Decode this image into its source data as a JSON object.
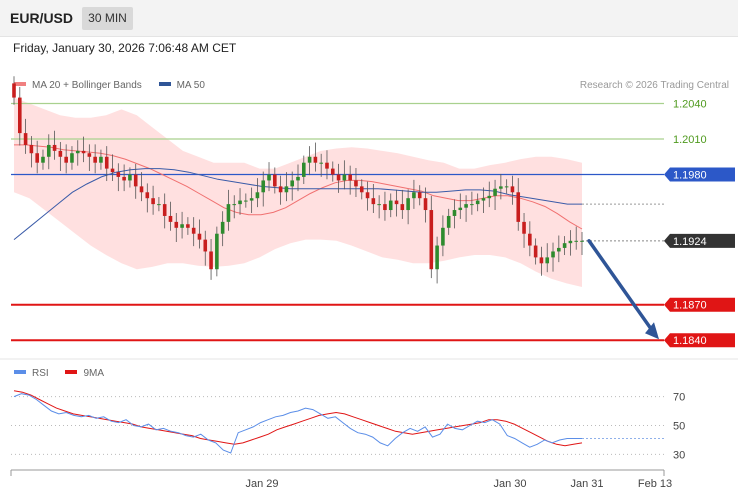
{
  "header": {
    "symbol": "EUR/USD",
    "timeframe": "30 MIN"
  },
  "datetime": "Friday, January 30, 2026 7:06:48 AM CET",
  "legend": {
    "ma20_bb": "MA 20 + Bollinger Bands",
    "ma50": "MA 50"
  },
  "credit": "Research © 2026 Trading Central",
  "rsi_legend": {
    "rsi": "RSI",
    "ma9": "9MA"
  },
  "colors": {
    "up": "#2e8b2e",
    "down": "#c81e1e",
    "band": "#ffd6d6",
    "ma20": "#f07070",
    "ma50": "#3a5ba8",
    "support": "#e01515",
    "resist_green": "#a9d18e",
    "blue_level": "#2c58c8",
    "arrow": "#2f5597",
    "rsi": "#5b8ee8",
    "rsi_ma": "#e01515"
  },
  "chart_data": {
    "type": "candlestick",
    "y_range": [
      1.1825,
      1.207
    ],
    "price_levels": [
      {
        "label": "1.2040",
        "value": 1.204,
        "style": "green-line"
      },
      {
        "label": "1.2010",
        "value": 1.201,
        "style": "green-line"
      },
      {
        "label": "1.1980",
        "value": 1.198,
        "style": "blue-badge"
      },
      {
        "label": "1.1924",
        "value": 1.1924,
        "style": "dark-badge"
      },
      {
        "label": "1.1870",
        "value": 1.187,
        "style": "red-badge"
      },
      {
        "label": "1.1840",
        "value": 1.184,
        "style": "red-badge"
      }
    ],
    "x_labels": [
      "Jan 29",
      "Jan 30",
      "Jan 31",
      "Feb 13"
    ],
    "close_series": [
      1.2045,
      1.2015,
      1.2005,
      1.1998,
      1.199,
      1.1995,
      1.2005,
      1.2,
      1.1995,
      1.199,
      1.1998,
      1.2,
      1.1998,
      1.1995,
      1.199,
      1.1995,
      1.1985,
      1.1982,
      1.1978,
      1.1975,
      1.198,
      1.197,
      1.1965,
      1.196,
      1.1955,
      1.1955,
      1.1945,
      1.194,
      1.1935,
      1.1938,
      1.1935,
      1.193,
      1.1925,
      1.1915,
      1.19,
      1.193,
      1.194,
      1.1955,
      1.1955,
      1.1958,
      1.1958,
      1.196,
      1.1965,
      1.1975,
      1.198,
      1.197,
      1.1965,
      1.197,
      1.1975,
      1.1978,
      1.199,
      1.1995,
      1.199,
      1.199,
      1.1985,
      1.198,
      1.1975,
      1.198,
      1.1975,
      1.197,
      1.1965,
      1.196,
      1.1955,
      1.1955,
      1.195,
      1.1958,
      1.1955,
      1.195,
      1.196,
      1.1965,
      1.196,
      1.195,
      1.19,
      1.192,
      1.1935,
      1.1945,
      1.195,
      1.1952,
      1.1955,
      1.1955,
      1.1958,
      1.196,
      1.1962,
      1.1968,
      1.197,
      1.197,
      1.1965,
      1.194,
      1.193,
      1.192,
      1.191,
      1.1905,
      1.191,
      1.1915,
      1.1918,
      1.1922,
      1.1924,
      1.1924,
      1.1924
    ],
    "ma20_series": [
      1.2005,
      1.2005,
      1.2004,
      1.2003,
      1.2001,
      1.2,
      1.1999,
      1.1998,
      1.1996,
      1.1993,
      1.1989,
      1.1985,
      1.198,
      1.1975,
      1.197,
      1.1964,
      1.1958,
      1.1952,
      1.1948,
      1.1946,
      1.1946,
      1.1948,
      1.1952,
      1.1958,
      1.1964,
      1.1969,
      1.1973,
      1.1975,
      1.1975,
      1.1974,
      1.1972,
      1.197,
      1.1968,
      1.1966,
      1.1962,
      1.196,
      1.1958,
      1.1958,
      1.196,
      1.1962,
      1.1962,
      1.196,
      1.1957,
      1.1953,
      1.1947,
      1.194,
      1.1934
    ],
    "ma50_series": [
      1.1925,
      1.1935,
      1.1945,
      1.1955,
      1.1965,
      1.1972,
      1.1978,
      1.1982,
      1.1984,
      1.1985,
      1.1985,
      1.1984,
      1.1982,
      1.1979,
      1.1976,
      1.1974,
      1.1972,
      1.197,
      1.1969,
      1.1968,
      1.1968,
      1.1968,
      1.1968,
      1.1968,
      1.1968,
      1.1968,
      1.1967,
      1.1966,
      1.1965,
      1.1965,
      1.1966,
      1.1967,
      1.1967,
      1.1966,
      1.1963,
      1.1961,
      1.1959,
      1.1957,
      1.1955,
      1.1955
    ],
    "bb_upper": [
      1.2045,
      1.204,
      1.2035,
      1.203,
      1.2028,
      1.2028,
      1.203,
      1.2035,
      1.203,
      1.202,
      1.201,
      1.2,
      1.1995,
      1.199,
      1.199,
      1.199,
      1.1985,
      1.1985,
      1.199,
      1.1995,
      1.2,
      1.2002,
      1.2003,
      1.2002,
      1.2,
      1.1998,
      1.1995,
      1.1992,
      1.199,
      1.1985,
      1.1985,
      1.1988,
      1.199,
      1.1993,
      1.1995,
      1.1995,
      1.1993,
      1.199
    ],
    "bb_lower": [
      1.1965,
      1.196,
      1.195,
      1.194,
      1.193,
      1.192,
      1.1912,
      1.1905,
      1.19,
      1.1902,
      1.1905,
      1.1905,
      1.1903,
      1.1902,
      1.1903,
      1.1905,
      1.191,
      1.1917,
      1.1922,
      1.1925,
      1.1925,
      1.1924,
      1.192,
      1.1915,
      1.191,
      1.1908,
      1.1905,
      1.1905,
      1.1907,
      1.191,
      1.1912,
      1.1912,
      1.191,
      1.1905,
      1.1898,
      1.1892,
      1.1888,
      1.1885
    ],
    "projection": {
      "from": 1.1924,
      "to": 1.184
    },
    "rsi": {
      "ticks": [
        "70",
        "50",
        "30"
      ],
      "tick_values": [
        70,
        50,
        30
      ],
      "y_range": [
        22,
        78
      ],
      "rsi_series": [
        70,
        72,
        71,
        68,
        64,
        60,
        58,
        59,
        57,
        56,
        57,
        55,
        56,
        53,
        52,
        54,
        50,
        49,
        51,
        47,
        48,
        46,
        45,
        43,
        42,
        44,
        40,
        38,
        33,
        31,
        45,
        47,
        49,
        52,
        54,
        56,
        57,
        59,
        60,
        62,
        61,
        58,
        55,
        56,
        52,
        48,
        45,
        44,
        42,
        38,
        36,
        41,
        45,
        48,
        46,
        49,
        42,
        44,
        51,
        48,
        47,
        50,
        53,
        52,
        54,
        51,
        43,
        41,
        38,
        35,
        37,
        40,
        38,
        40,
        41,
        41,
        41
      ],
      "ma_series": [
        74,
        73,
        71,
        68,
        65,
        62,
        60,
        58,
        57,
        56,
        55,
        54,
        53,
        52,
        51,
        49,
        48,
        47,
        46,
        45,
        44,
        43,
        41,
        40,
        39,
        38,
        37,
        38,
        40,
        42,
        44,
        47,
        49,
        51,
        53,
        55,
        57,
        58,
        59,
        58,
        56,
        54,
        52,
        50,
        48,
        46,
        45,
        44,
        45,
        46,
        47,
        48,
        49,
        50,
        51,
        52,
        54,
        54,
        53,
        51,
        48,
        45,
        42,
        39,
        37,
        36,
        37,
        38
      ]
    }
  }
}
